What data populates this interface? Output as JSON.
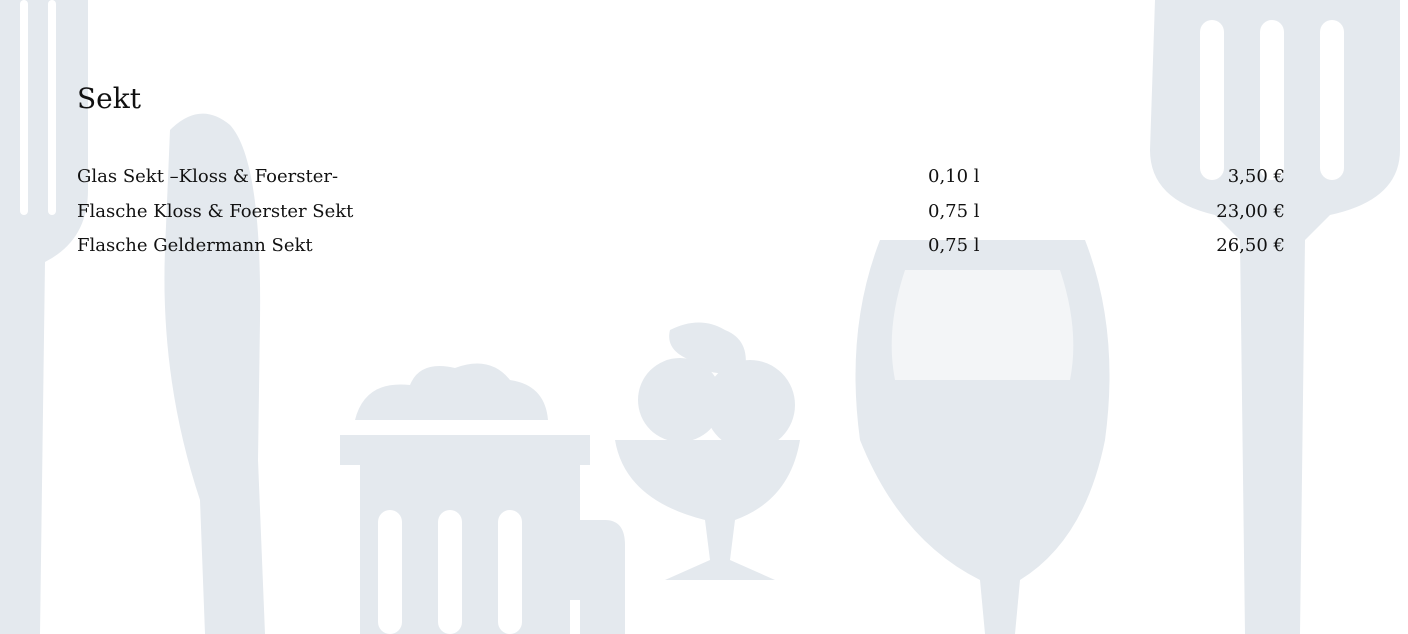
{
  "section": {
    "title": "Sekt",
    "items": [
      {
        "name": "Glas Sekt –Kloss & Foerster-",
        "volume": "0,10 l",
        "price": "3,50 €"
      },
      {
        "name": "Flasche Kloss & Foerster Sekt",
        "volume": "0,75 l",
        "price": "23,00 €"
      },
      {
        "name": "Flasche Geldermann Sekt",
        "volume": "0,75 l",
        "price": "26,50 €"
      }
    ]
  }
}
